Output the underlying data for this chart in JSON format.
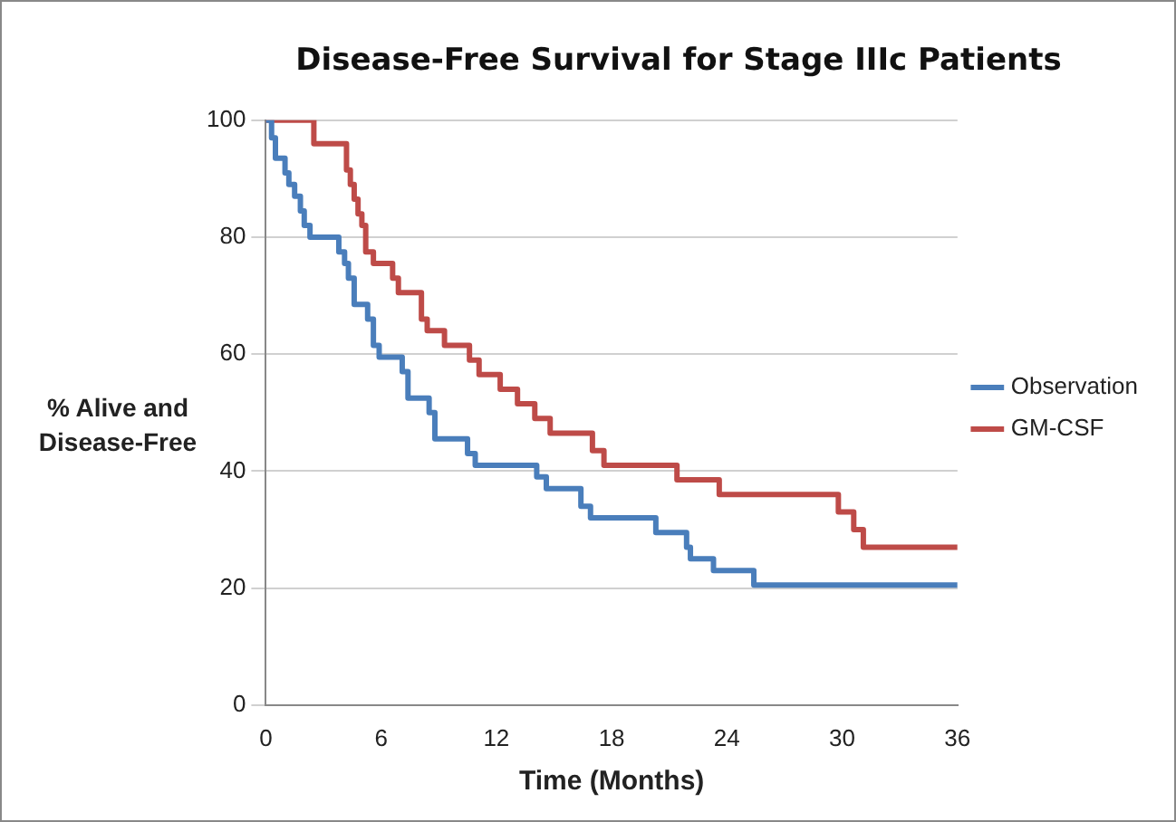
{
  "chart_data": {
    "type": "step",
    "title": "Disease-Free Survival for Stage IIIc Patients",
    "xlabel": "Time (Months)",
    "ylabel": "% Alive and Disease-Free",
    "xlim": [
      0,
      36
    ],
    "xticks": [
      0,
      6,
      12,
      18,
      24,
      30,
      36
    ],
    "ylim": [
      0,
      100
    ],
    "yticks": [
      0,
      20,
      40,
      60,
      80,
      100
    ],
    "grid": "y",
    "legend": "right",
    "marker": "none",
    "line_style": "solid",
    "series": [
      {
        "name": "Observation",
        "color": "#4a7ebb",
        "x": [
          0,
          0.3,
          0.5,
          1,
          1.2,
          1.5,
          1.8,
          2,
          2.3,
          3.8,
          4.1,
          4.3,
          4.6,
          5.3,
          5.6,
          5.9,
          7.1,
          7.4,
          8.5,
          8.8,
          10.5,
          10.9,
          14.1,
          14.6,
          16.4,
          16.9,
          20.3,
          21.9,
          22.1,
          23.3,
          25.4,
          36
        ],
        "values": [
          100,
          97,
          93.5,
          91,
          89,
          87,
          84.5,
          82,
          80,
          77.5,
          75.5,
          73,
          68.5,
          66,
          61.5,
          59.5,
          57,
          52.5,
          50,
          45.5,
          43,
          41,
          39,
          37,
          34,
          32,
          29.5,
          27,
          25,
          23,
          20.5,
          20.5
        ]
      },
      {
        "name": "GM-CSF",
        "color": "#be4b48",
        "x": [
          0,
          2.5,
          4.2,
          4.4,
          4.6,
          4.8,
          5,
          5.2,
          5.6,
          6.6,
          6.9,
          8.1,
          8.4,
          9.3,
          10.6,
          11.1,
          12.2,
          13.1,
          14,
          14.8,
          17,
          17.6,
          21.4,
          23.6,
          29.8,
          30.6,
          31.1,
          36
        ],
        "values": [
          100,
          96,
          91.5,
          89,
          86.5,
          84,
          82,
          77.5,
          75.5,
          73,
          70.5,
          66,
          64,
          61.5,
          59,
          56.5,
          54,
          51.5,
          49,
          46.5,
          43.5,
          41,
          38.5,
          36,
          33,
          30,
          27,
          27
        ]
      }
    ]
  }
}
